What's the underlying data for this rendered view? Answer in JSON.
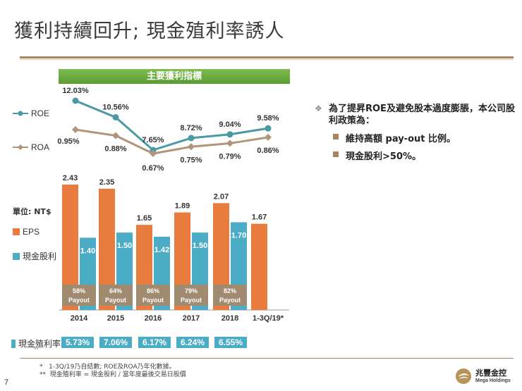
{
  "title": "獲利持續回升; 現金殖利率誘人",
  "banner": "主要獲利指標",
  "colors": {
    "eps": "#e87c3e",
    "cash_dividend": "#4bacc6",
    "payout_box": "#a08a70",
    "line": "#4a9aa5",
    "roa_line": "#b0957a",
    "accent": "#a9865f"
  },
  "legend": {
    "roe": "ROE",
    "roa": "ROA",
    "eps": "EPS",
    "cash": "現金股利"
  },
  "unit_label": "單位: NT$",
  "chart_data": {
    "type": "bar",
    "categories": [
      "2014",
      "2015",
      "2016",
      "2017",
      "2018",
      "1-3Q/19*"
    ],
    "roe": [
      "12.03%",
      "10.56%",
      "7.65%",
      "8.72%",
      "9.04%",
      "9.58%"
    ],
    "roe_values": [
      12.03,
      10.56,
      7.65,
      8.72,
      9.04,
      9.58
    ],
    "roa": [
      "0.95%",
      "0.88%",
      "0.67%",
      "0.75%",
      "0.79%",
      "0.86%"
    ],
    "roa_values": [
      0.95,
      0.88,
      0.67,
      0.75,
      0.79,
      0.86
    ],
    "eps": [
      "2.43",
      "2.35",
      "1.65",
      "1.89",
      "2.07",
      "1.67"
    ],
    "eps_values": [
      2.43,
      2.35,
      1.65,
      1.89,
      2.07,
      1.67
    ],
    "cash_dividend": [
      "1.40",
      "1.50",
      "1.42",
      "1.50",
      "1.70"
    ],
    "cash_dividend_values": [
      1.4,
      1.5,
      1.42,
      1.5,
      1.7
    ],
    "payout_pct": [
      "58%",
      "64%",
      "86%",
      "79%",
      "82%"
    ],
    "payout_label": "Payout",
    "ylim": [
      0,
      2.6
    ]
  },
  "cash_yield": {
    "label": "現金殖利率",
    "marker": "**",
    "values": [
      "5.73%",
      "7.06%",
      "6.17%",
      "6.24%",
      "6.55%"
    ]
  },
  "bullets": {
    "main": "為了提昇ROE及避免股本過度膨脹，本公司股利政策為：",
    "subs": [
      "維持高額 pay-out 比例。",
      "現金股利>50%。"
    ]
  },
  "footnotes": [
    "*   1-3Q/19乃自結數; ROE及ROA乃年化數據。",
    "**  現金殖利率 = 現金股利 / 當年度最後交易日股價"
  ],
  "page_number": "7",
  "logo": {
    "name_cn": "兆豐金控",
    "name_en": "Mega Holdings"
  }
}
